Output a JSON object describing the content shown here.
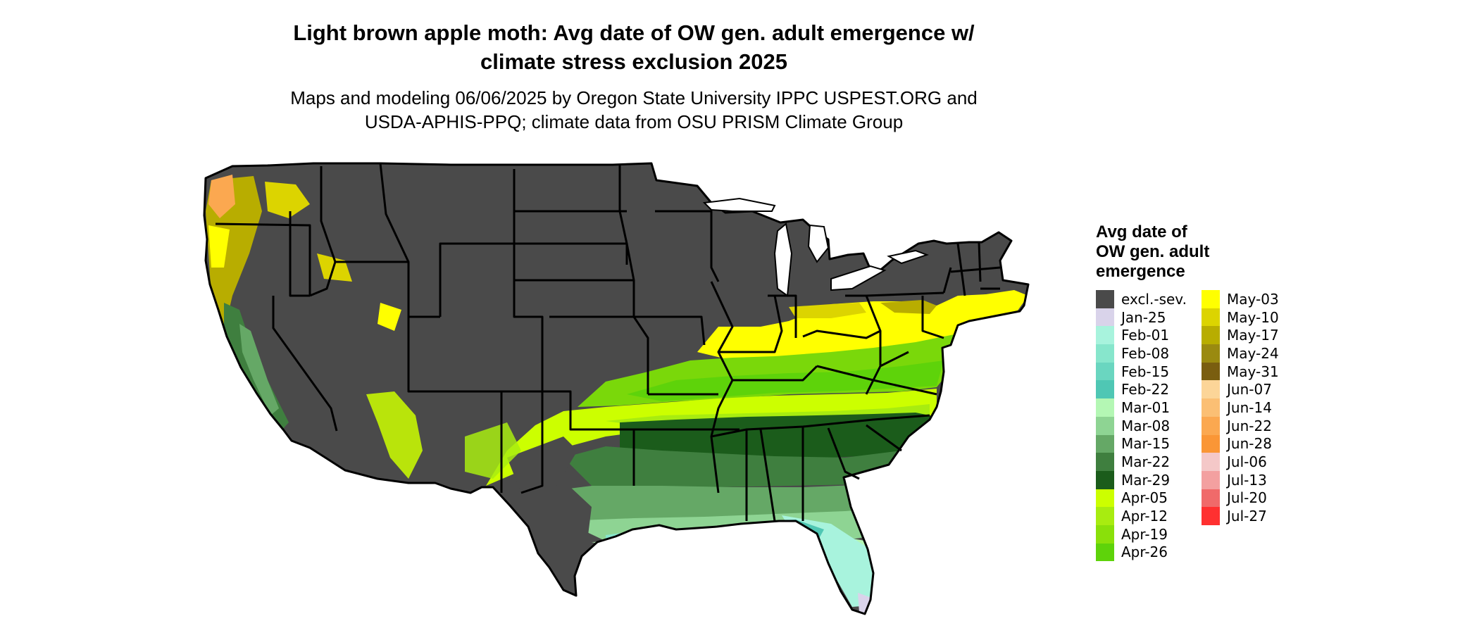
{
  "title": {
    "line1": "Light brown apple moth: Avg date of OW gen. adult emergence w/",
    "line2": "climate stress exclusion 2025"
  },
  "subtitle": {
    "line1": "Maps and modeling 06/06/2025 by Oregon State University IPPC USPEST.ORG and",
    "line2": "USDA-APHIS-PPQ; climate data from OSU PRISM Climate Group"
  },
  "legend": {
    "title_lines": [
      "Avg date of",
      "OW gen. adult",
      "emergence"
    ],
    "items": [
      {
        "label": "excl.-sev.",
        "color": "#4a4a4a"
      },
      {
        "label": "Jan-25",
        "color": "#d9d3ea"
      },
      {
        "label": "Feb-01",
        "color": "#a8f3dd"
      },
      {
        "label": "Feb-08",
        "color": "#87e6cc"
      },
      {
        "label": "Feb-15",
        "color": "#6ad6c0"
      },
      {
        "label": "Feb-22",
        "color": "#4fc7b4"
      },
      {
        "label": "Mar-01",
        "color": "#b4f7b4"
      },
      {
        "label": "Mar-08",
        "color": "#8ed493"
      },
      {
        "label": "Mar-15",
        "color": "#65a866"
      },
      {
        "label": "Mar-22",
        "color": "#3f7f3f"
      },
      {
        "label": "Mar-29",
        "color": "#1b5c1b"
      },
      {
        "label": "Apr-05",
        "color": "#ccff00"
      },
      {
        "label": "Apr-12",
        "color": "#a8ec10"
      },
      {
        "label": "Apr-19",
        "color": "#8ae00a"
      },
      {
        "label": "Apr-26",
        "color": "#5ed30a"
      },
      {
        "label": "May-03",
        "color": "#ffff00"
      },
      {
        "label": "May-10",
        "color": "#dcd400"
      },
      {
        "label": "May-17",
        "color": "#b8ad00"
      },
      {
        "label": "May-24",
        "color": "#9a8a10"
      },
      {
        "label": "May-31",
        "color": "#7a5e10"
      },
      {
        "label": "Jun-07",
        "color": "#fcd598"
      },
      {
        "label": "Jun-14",
        "color": "#fbbf74"
      },
      {
        "label": "Jun-22",
        "color": "#fba850"
      },
      {
        "label": "Jun-28",
        "color": "#fa9636"
      },
      {
        "label": "Jul-06",
        "color": "#f4c8c8"
      },
      {
        "label": "Jul-13",
        "color": "#f3a0a0"
      },
      {
        "label": "Jul-20",
        "color": "#f06a6a"
      },
      {
        "label": "Jul-27",
        "color": "#ff3030"
      }
    ]
  }
}
